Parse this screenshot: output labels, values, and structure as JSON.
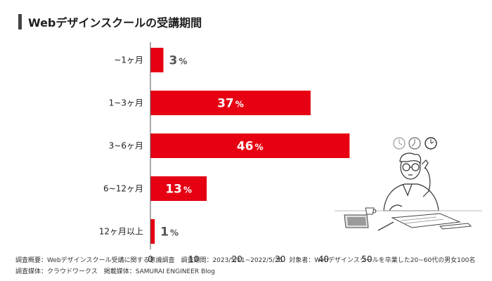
{
  "title": "Webデザインスクールの受講期間",
  "chart_data": {
    "type": "bar",
    "orientation": "horizontal",
    "categories": [
      "~1ヶ月",
      "1~3ヶ月",
      "3~6ヶ月",
      "6~12ヶ月",
      "12ヶ月以上"
    ],
    "values": [
      3,
      37,
      46,
      13,
      1
    ],
    "value_unit": "%",
    "xlim": [
      0,
      50
    ],
    "xticks": [
      0,
      10,
      20,
      30,
      40,
      50
    ],
    "bar_color": "#e60012",
    "grid": false
  },
  "footer": {
    "line1": "調査概要：Webデザインスクール受講に関する意識調査　調査期間：2023/5/11~2022/5/25　対象者：Webデザインスクールを卒業した20~60代の男女100名",
    "line2": "調査媒体：クラウドワークス　掲載媒体：SAMURAI ENGINEER Blog"
  }
}
